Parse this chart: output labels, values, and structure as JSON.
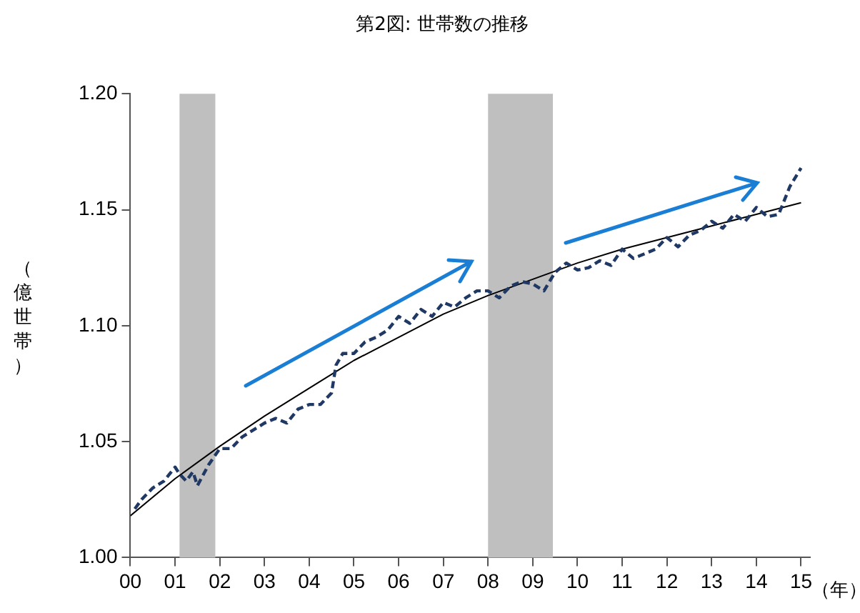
{
  "chart_data": {
    "type": "line",
    "title": "第2図: 世帯数の推移",
    "ylabel": "（億世帯）",
    "xlabel": "（年）",
    "xlim": [
      2000,
      2015.2
    ],
    "xticks": [
      {
        "value": 2000,
        "label": "00"
      },
      {
        "value": 2001,
        "label": "01"
      },
      {
        "value": 2002,
        "label": "02"
      },
      {
        "value": 2003,
        "label": "03"
      },
      {
        "value": 2004,
        "label": "04"
      },
      {
        "value": 2005,
        "label": "05"
      },
      {
        "value": 2006,
        "label": "06"
      },
      {
        "value": 2007,
        "label": "07"
      },
      {
        "value": 2008,
        "label": "08"
      },
      {
        "value": 2009,
        "label": "09"
      },
      {
        "value": 2010,
        "label": "10"
      },
      {
        "value": 2011,
        "label": "11"
      },
      {
        "value": 2012,
        "label": "12"
      },
      {
        "value": 2013,
        "label": "13"
      },
      {
        "value": 2014,
        "label": "14"
      },
      {
        "value": 2015,
        "label": "15"
      }
    ],
    "ylim": [
      1.0,
      1.2
    ],
    "yticks": [
      {
        "value": 1.0,
        "label": "1.00"
      },
      {
        "value": 1.05,
        "label": "1.05"
      },
      {
        "value": 1.1,
        "label": "1.10"
      },
      {
        "value": 1.15,
        "label": "1.15"
      },
      {
        "value": 1.2,
        "label": "1.20"
      }
    ],
    "legend": false,
    "bands": [
      {
        "axis": "x",
        "from": 2001.1,
        "to": 2001.9,
        "color": "#bfbfbf"
      },
      {
        "axis": "x",
        "from": 2008.0,
        "to": 2009.45,
        "color": "#bfbfbf"
      }
    ],
    "series": [
      {
        "color": "#1f3864",
        "line_style": "dashed",
        "marker": "none",
        "x": [
          2000.1,
          2000.25,
          2000.5,
          2000.75,
          2001.0,
          2001.1,
          2001.25,
          2001.4,
          2001.5,
          2001.75,
          2002.0,
          2002.25,
          2002.5,
          2002.75,
          2003.0,
          2003.25,
          2003.5,
          2003.75,
          2004.0,
          2004.25,
          2004.5,
          2004.6,
          2004.75,
          2005.0,
          2005.25,
          2005.5,
          2005.75,
          2006.0,
          2006.25,
          2006.5,
          2006.75,
          2007.0,
          2007.25,
          2007.5,
          2007.75,
          2008.0,
          2008.25,
          2008.5,
          2008.75,
          2009.0,
          2009.25,
          2009.5,
          2009.75,
          2010.0,
          2010.25,
          2010.5,
          2010.75,
          2011.0,
          2011.25,
          2011.5,
          2011.75,
          2012.0,
          2012.25,
          2012.5,
          2012.75,
          2013.0,
          2013.25,
          2013.5,
          2013.75,
          2014.0,
          2014.25,
          2014.5,
          2014.75,
          2015.0
        ],
        "values": [
          1.021,
          1.025,
          1.03,
          1.033,
          1.039,
          1.036,
          1.033,
          1.037,
          1.031,
          1.04,
          1.047,
          1.047,
          1.052,
          1.055,
          1.058,
          1.06,
          1.058,
          1.064,
          1.066,
          1.066,
          1.071,
          1.083,
          1.088,
          1.088,
          1.093,
          1.095,
          1.098,
          1.104,
          1.101,
          1.107,
          1.104,
          1.11,
          1.108,
          1.112,
          1.115,
          1.115,
          1.112,
          1.117,
          1.119,
          1.118,
          1.115,
          1.123,
          1.127,
          1.124,
          1.125,
          1.128,
          1.126,
          1.133,
          1.129,
          1.131,
          1.133,
          1.138,
          1.134,
          1.139,
          1.141,
          1.145,
          1.142,
          1.148,
          1.145,
          1.151,
          1.147,
          1.148,
          1.16,
          1.168
        ]
      },
      {
        "color": "#000000",
        "line_style": "solid",
        "marker": "none",
        "x": [
          2000,
          2001,
          2002,
          2003,
          2004,
          2005,
          2006,
          2007,
          2008,
          2009,
          2010,
          2011,
          2012,
          2013,
          2014,
          2015
        ],
        "values": [
          1.018,
          1.034,
          1.048,
          1.061,
          1.073,
          1.085,
          1.095,
          1.105,
          1.113,
          1.12,
          1.127,
          1.133,
          1.138,
          1.143,
          1.148,
          1.153
        ]
      }
    ]
  }
}
